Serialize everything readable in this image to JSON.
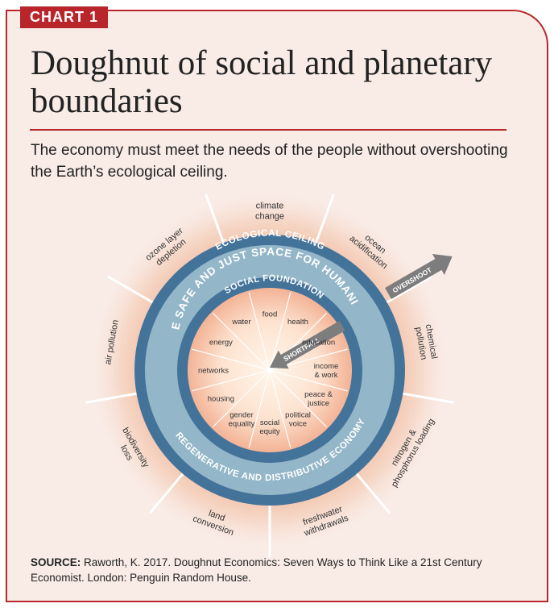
{
  "tag": "CHART 1",
  "title": "Doughnut of social and planetary boundaries",
  "subtitle": "The economy must meet the needs of the people without overshooting the Earth’s ecological ceiling.",
  "ring_labels": {
    "ecological_ceiling": "ECOLOGICAL CEILING",
    "safe_space": "THE SAFE AND JUST SPACE FOR HUMANITY",
    "social_foundation": "SOCIAL FOUNDATION",
    "regenerative": "REGENERATIVE AND DISTRIBUTIVE ECONOMY"
  },
  "arrows": {
    "overshoot": "OVERSHOOT",
    "shortfall": "SHORTFALL"
  },
  "ecological_boundaries": [
    [
      "climate",
      "change"
    ],
    [
      "ocean",
      "acidification"
    ],
    [
      "chemical",
      "pollution"
    ],
    [
      "nitrogen &",
      "phosphorus loading"
    ],
    [
      "freshwater",
      "withdrawals"
    ],
    [
      "land",
      "conversion"
    ],
    [
      "biodiversity",
      "loss"
    ],
    [
      "air pollution"
    ],
    [
      "ozone layer",
      "depletion"
    ]
  ],
  "social_foundation_items": [
    [
      "food"
    ],
    [
      "health"
    ],
    [
      "education"
    ],
    [
      "income",
      "& work"
    ],
    [
      "peace &",
      "justice"
    ],
    [
      "political",
      "voice"
    ],
    [
      "social",
      "equity"
    ],
    [
      "gender",
      "equality"
    ],
    [
      "housing"
    ],
    [
      "networks"
    ],
    [
      "energy"
    ],
    [
      "water"
    ]
  ],
  "colors": {
    "brand_red": "#b8262c",
    "ring_dark": "#44739a",
    "ring_light": "#93b6c8",
    "glow": "#f0b89c",
    "arrow_gray": "#7d7d7d"
  },
  "source": {
    "label": "SOURCE:",
    "text": "Raworth, K. 2017. Doughnut Economics: Seven Ways to Think Like a 21st Century Economist. London: Penguin Random House."
  }
}
